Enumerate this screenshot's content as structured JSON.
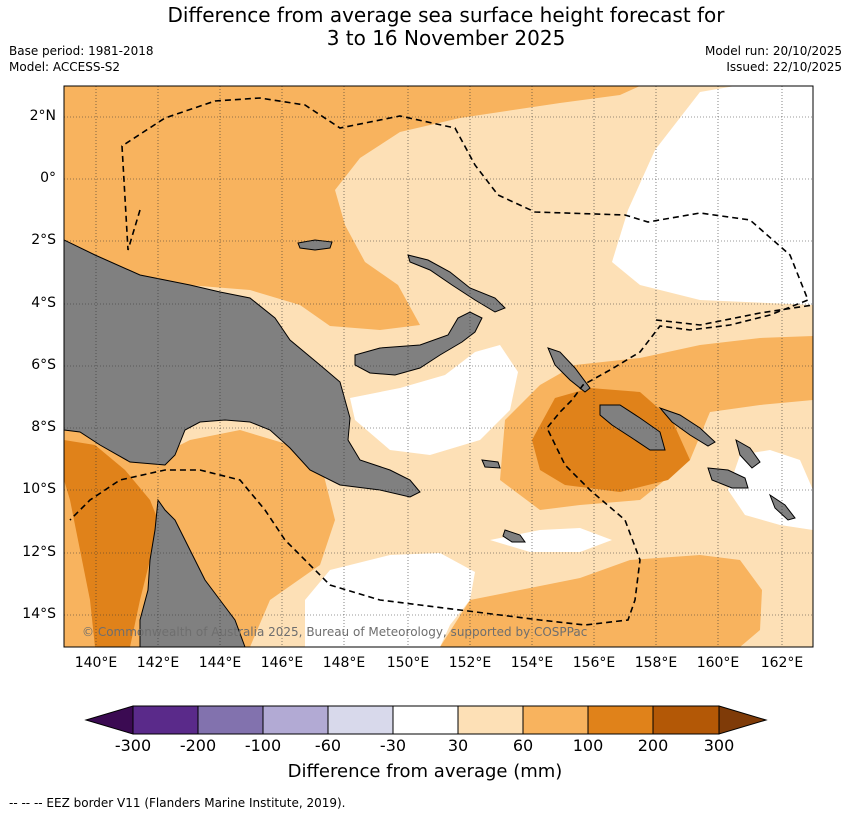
{
  "title": {
    "line1": "Difference from average sea surface height forecast for",
    "line2": "3 to 16 November 2025"
  },
  "meta": {
    "base_period": "Base period: 1981-2018",
    "model": "Model: ACCESS-S2",
    "model_run": "Model run: 20/10/2025",
    "issued": "Issued: 22/10/2025"
  },
  "map": {
    "latitude_labels": [
      "2°N",
      "0°",
      "2°S",
      "4°S",
      "6°S",
      "8°S",
      "10°S",
      "12°S",
      "14°S"
    ],
    "longitude_labels": [
      "140°E",
      "142°E",
      "144°E",
      "146°E",
      "148°E",
      "150°E",
      "152°E",
      "154°E",
      "156°E",
      "158°E",
      "160°E",
      "162°E"
    ],
    "copyright": "© Commonwealth of Australia 2025, Bureau of Meteorology, supported by COSPPac",
    "colors": {
      "land": "#808080",
      "anomaly_30_60": "#fde0b6",
      "anomaly_60_100": "#f8b35e",
      "anomaly_100_200": "#e0821a"
    }
  },
  "colorbar": {
    "title": "Difference from average (mm)",
    "labels": [
      "-300",
      "-200",
      "-100",
      "-60",
      "-30",
      "30",
      "60",
      "100",
      "200",
      "300"
    ],
    "colors": [
      "#3b0a52",
      "#5a2a8a",
      "#8272ae",
      "#b2aad4",
      "#d8d9eb",
      "#ffffff",
      "#fde0b6",
      "#f8b35e",
      "#e0821a",
      "#b35806",
      "#7f3b08"
    ]
  },
  "footnote": "--  --  -- EEZ border V11 (Flanders Marine Institute, 2019)."
}
